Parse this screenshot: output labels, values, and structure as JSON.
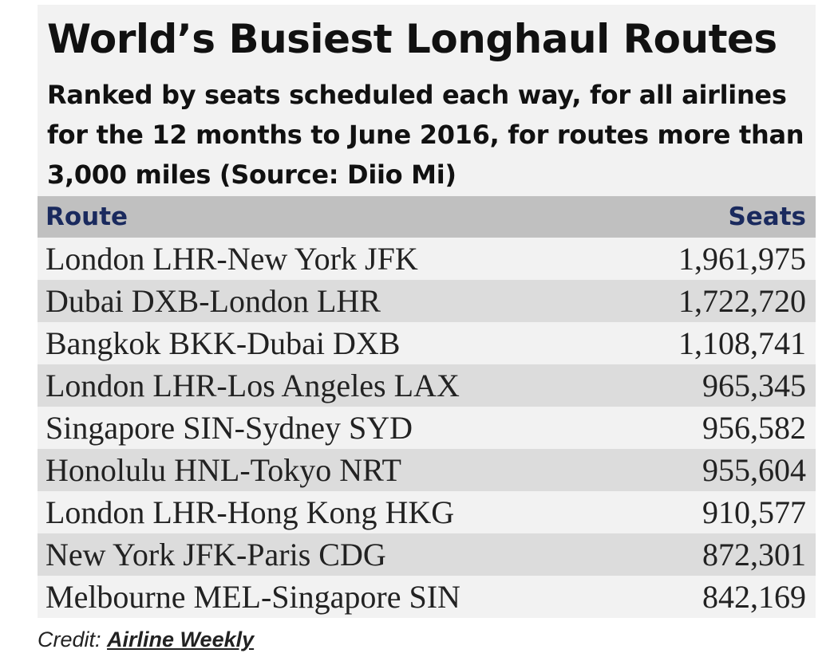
{
  "chart_data": {
    "type": "table",
    "title": "World’s Busiest Longhaul Routes",
    "subtitle": "Ranked by seats scheduled each way, for all airlines for the 12 months to June 2016, for routes more than 3,000 miles (Source: Diio Mi)",
    "columns": [
      "Route",
      "Seats"
    ],
    "rows": [
      {
        "route": "London LHR-New York JFK",
        "seats": "1,961,975",
        "value": 1961975
      },
      {
        "route": "Dubai DXB-London LHR",
        "seats": "1,722,720",
        "value": 1722720
      },
      {
        "route": "Bangkok BKK-Dubai DXB",
        "seats": "1,108,741",
        "value": 1108741
      },
      {
        "route": "London LHR-Los Angeles LAX",
        "seats": "965,345",
        "value": 965345
      },
      {
        "route": "Singapore SIN-Sydney SYD",
        "seats": "956,582",
        "value": 956582
      },
      {
        "route": "Honolulu HNL-Tokyo NRT",
        "seats": "955,604",
        "value": 955604
      },
      {
        "route": "London LHR-Hong Kong HKG",
        "seats": "910,577",
        "value": 910577
      },
      {
        "route": "New York JFK-Paris CDG",
        "seats": "872,301",
        "value": 872301
      },
      {
        "route": "Melbourne MEL-Singapore SIN",
        "seats": "842,169",
        "value": 842169
      }
    ]
  },
  "credit": {
    "prefix": "Credit: ",
    "link_text": "Airline Weekly"
  },
  "colors": {
    "header_text": "#1a2a5e",
    "header_bg": "#c0c0c0",
    "row_light": "#f2f2f2",
    "row_dark": "#dcdcdc"
  }
}
